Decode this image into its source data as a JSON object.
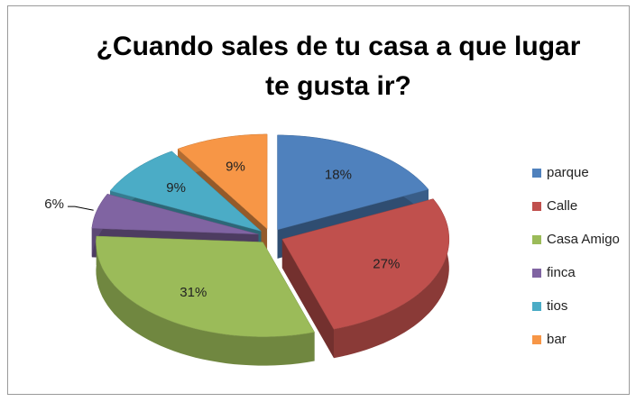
{
  "chart_data": {
    "type": "pie3d",
    "title": "¿Cuando sales de tu casa a que lugar te gusta ir?",
    "categories": [
      "parque",
      "Calle",
      "Casa Amigo",
      "finca",
      "tios",
      "bar"
    ],
    "values": [
      18,
      27,
      31,
      6,
      9,
      9
    ],
    "value_labels": [
      "18%",
      "27%",
      "31%",
      "6%",
      "9%",
      "9%"
    ],
    "colors": [
      "#4f81bd",
      "#c0504d",
      "#9bbb59",
      "#8064a2",
      "#4bacc6",
      "#f79646"
    ],
    "legend": "right"
  }
}
